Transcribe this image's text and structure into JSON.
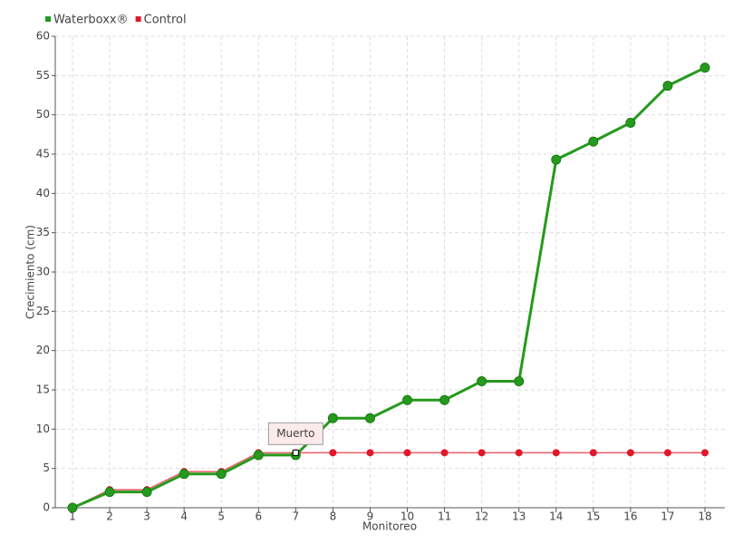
{
  "chart_data": {
    "type": "line",
    "x_label": "Monitoreo",
    "y_label": "Crecimiento (cm)",
    "categories": [
      "1",
      "2",
      "3",
      "4",
      "5",
      "6",
      "7",
      "8",
      "9",
      "10",
      "11",
      "12",
      "13",
      "14",
      "15",
      "16",
      "17",
      "18"
    ],
    "series": [
      {
        "name": "Waterboxx®",
        "color": "#259a1c",
        "values": [
          0,
          2,
          2,
          4.3,
          4.3,
          6.7,
          6.7,
          11.4,
          11.4,
          13.7,
          13.7,
          16.1,
          16.1,
          44.3,
          46.6,
          49,
          53.7,
          56
        ]
      },
      {
        "name": "Control",
        "color": "#e3172b",
        "values": [
          0,
          2.3,
          2.3,
          4.6,
          4.6,
          7,
          7,
          7,
          7,
          7,
          7,
          7,
          7,
          7,
          7,
          7,
          7,
          7
        ]
      }
    ],
    "annotation": "Muerto",
    "ylim": [
      0,
      60
    ],
    "yticks": [
      0,
      5,
      10,
      15,
      20,
      25,
      30,
      35,
      40,
      45,
      50,
      55,
      60
    ],
    "grid": true
  }
}
